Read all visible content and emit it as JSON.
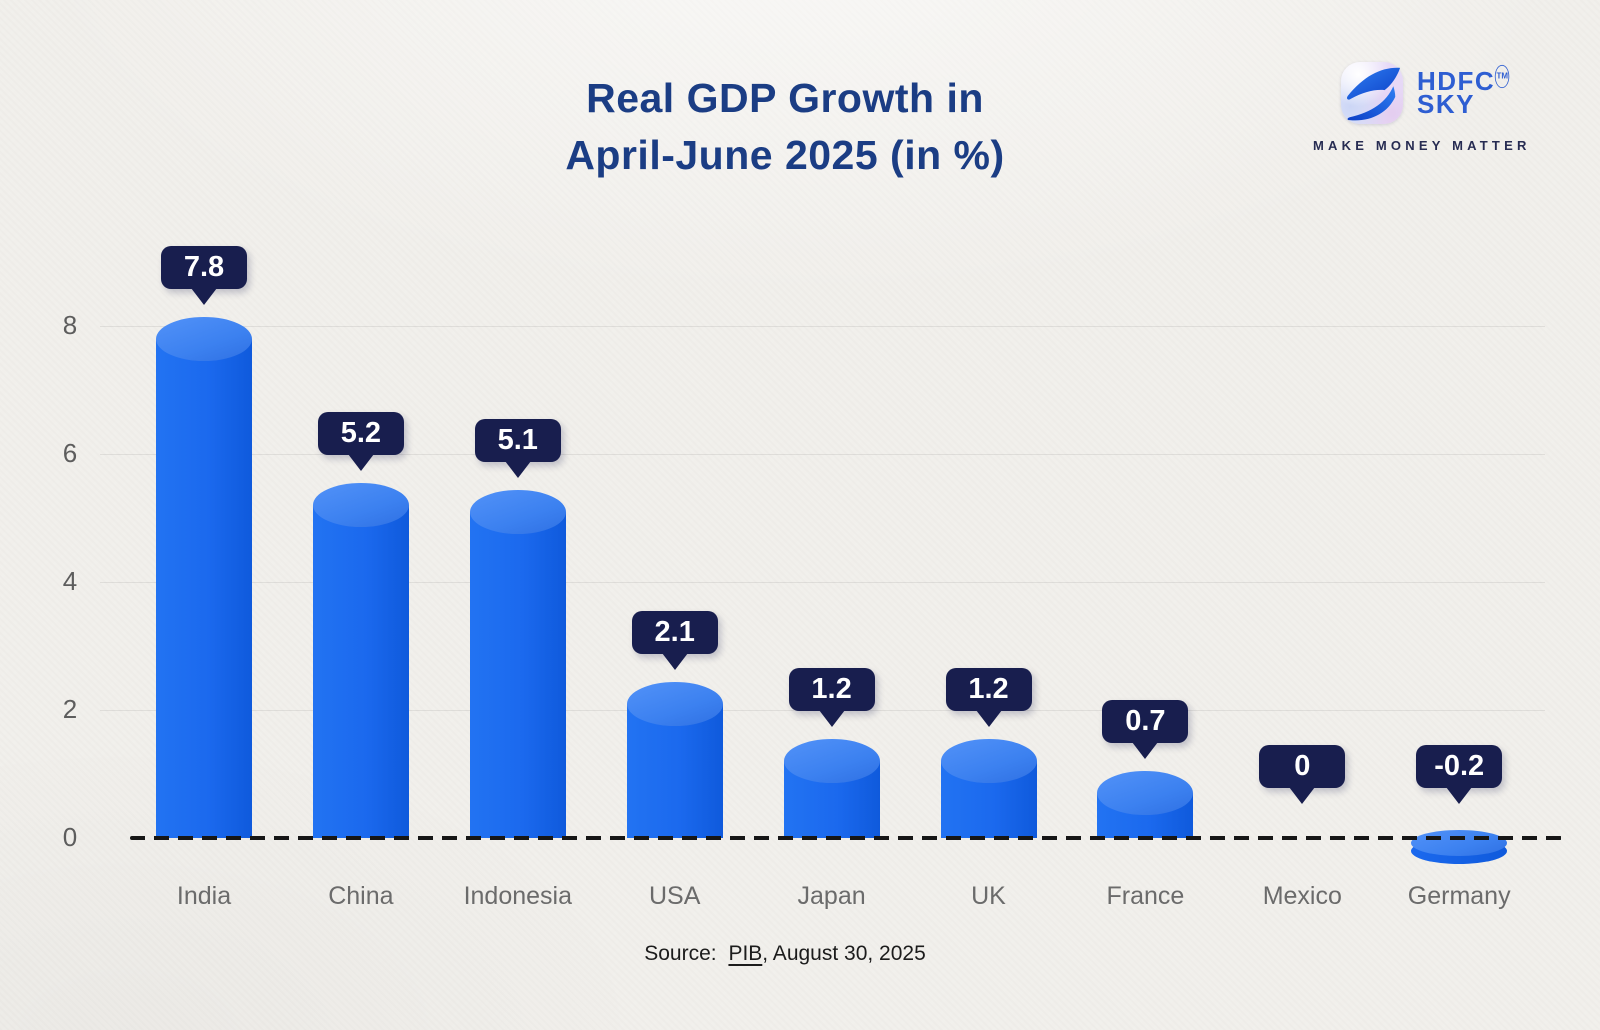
{
  "header": {
    "title_line1": "Real GDP Growth in",
    "title_line2": "April-June 2025 (in %)"
  },
  "logo": {
    "brand_line1": "HDFC",
    "brand_line2": "SKY",
    "trademark": "TM",
    "tagline": "MAKE MONEY MATTER"
  },
  "chart_data": {
    "type": "bar",
    "title": "Real GDP Growth in April-June 2025 (in %)",
    "categories": [
      "India",
      "China",
      "Indonesia",
      "USA",
      "Japan",
      "UK",
      "France",
      "Mexico",
      "Germany"
    ],
    "values": [
      7.8,
      5.2,
      5.1,
      2.1,
      1.2,
      1.2,
      0.7,
      0,
      -0.2
    ],
    "value_labels": [
      "7.8",
      "5.2",
      "5.1",
      "2.1",
      "1.2",
      "1.2",
      "0.7",
      "0",
      "-0.2"
    ],
    "yticks": [
      0,
      2,
      4,
      6,
      8
    ],
    "ylim": [
      -0.5,
      8.5
    ],
    "grid": true,
    "legend": "none",
    "baseline_style": "dashed",
    "bar_style": "3d-cylinder",
    "colors": {
      "bar_body": "#1b69ee",
      "bar_top": "#3c81f0",
      "callout_bg": "#181e4e",
      "callout_text": "#ffffff",
      "title": "#1b3d84",
      "axis_text": "#6b6b6b",
      "baseline": "#161616"
    }
  },
  "footer": {
    "source_prefix": "Source:",
    "source_link_text": "PIB",
    "source_suffix": ", August 30, 2025"
  }
}
